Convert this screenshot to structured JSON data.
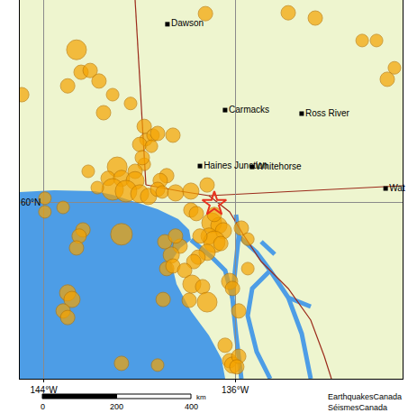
{
  "chart_data": {
    "type": "map",
    "xlim": [
      -145,
      -129
    ],
    "ylim": [
      56,
      64.6
    ],
    "xticks": [
      {
        "value": -144,
        "label": "144°W"
      },
      {
        "value": -136,
        "label": "136°W"
      }
    ],
    "yticks": [
      {
        "value": 60,
        "label": "60°N"
      }
    ],
    "grid": true,
    "places": [
      {
        "name": "Dawson",
        "lon": -138.83,
        "lat": 64.05
      },
      {
        "name": "Carmacks",
        "lon": -136.42,
        "lat": 62.1
      },
      {
        "name": "Ross River",
        "lon": -133.22,
        "lat": 62.02
      },
      {
        "name": "Haines Junction",
        "lon": -137.47,
        "lat": 60.83
      },
      {
        "name": "Whitehorse",
        "lon": -135.29,
        "lat": 60.81
      },
      {
        "name": "Wat",
        "lon": -129.71,
        "lat": 60.32
      }
    ],
    "earthquakes": {
      "color": "#f5a300",
      "marker": "circle",
      "lon": [
        -137.24,
        -133.78,
        -132.65,
        -130.69,
        -130.09,
        -129.64,
        -129.34,
        -144.92,
        -142.63,
        -142.44,
        -143.0,
        -142.06,
        -141.69,
        -141.12,
        -141.5,
        -140.37,
        -139.8,
        -139.73,
        -139.99,
        -139.43,
        -139.24,
        -138.6,
        -139.5,
        -139.8,
        -138.86,
        -139.13,
        -140.93,
        -141.31,
        -140.75,
        -140.18,
        -140.18,
        -141.12,
        -140.56,
        -139.99,
        -139.62,
        -139.24,
        -139.05,
        -138.49,
        -137.85,
        -137.17,
        -139.88,
        -142.14,
        -141.76,
        -137.85,
        -137.62,
        -136.98,
        -136.68,
        -136.49,
        -137.09,
        -136.87,
        -136.6,
        -137.17,
        -137.55,
        -137.73,
        -138.3,
        -138.67,
        -138.86,
        -138.6,
        -138.11,
        -137.81,
        -137.36,
        -137.17,
        -137.92,
        -138.94,
        -138.49,
        -137.47,
        -136.23,
        -136.11,
        -135.74,
        -135.47,
        -135.47,
        -135.85,
        -136.23,
        -136.11,
        -135.85,
        -135.93,
        -136.42,
        -139.01,
        -140.75,
        -142.36,
        -142.52,
        -142.63,
        -143.95,
        -143.95,
        -143.19,
        -143.0,
        -142.82,
        -143.19,
        -143.0,
        -140.75,
        -139.24,
        -136.87
      ],
      "lat": [
        64.29,
        64.31,
        64.19,
        63.68,
        63.68,
        62.8,
        63.06,
        62.45,
        63.47,
        62.96,
        62.65,
        63.0,
        62.76,
        62.45,
        62.04,
        62.25,
        61.73,
        61.43,
        61.32,
        61.53,
        61.57,
        61.53,
        61.28,
        60.87,
        60.61,
        60.5,
        60.81,
        60.55,
        60.55,
        60.71,
        60.5,
        60.3,
        60.26,
        60.2,
        60.14,
        60.3,
        60.24,
        60.22,
        60.26,
        60.4,
        61.02,
        60.71,
        60.34,
        59.83,
        59.75,
        59.54,
        59.48,
        59.36,
        59.24,
        59.11,
        59.07,
        58.87,
        58.76,
        58.66,
        59.01,
        58.81,
        58.5,
        58.56,
        58.46,
        58.15,
        58.09,
        57.74,
        57.78,
        59.11,
        59.24,
        59.24,
        58.21,
        58.05,
        59.42,
        59.17,
        58.5,
        57.54,
        56.41,
        56.31,
        56.51,
        56.27,
        56.76,
        57.8,
        59.28,
        59.38,
        59.24,
        58.97,
        60.1,
        59.79,
        59.89,
        57.95,
        57.8,
        57.54,
        57.39,
        56.35,
        56.31,
        59.73
      ],
      "size": [
        4,
        4,
        4,
        3.5,
        3.5,
        4,
        3.5,
        4,
        5.5,
        4,
        4,
        4,
        4,
        3.5,
        4,
        3.5,
        4,
        3.5,
        4,
        3.5,
        4,
        4,
        3.5,
        3.5,
        4,
        4,
        5.5,
        4,
        4.5,
        4,
        5,
        6,
        6,
        5,
        4.5,
        4,
        3.5,
        4.5,
        4.5,
        4,
        4,
        3.5,
        3.5,
        4,
        4,
        5.5,
        4.5,
        4.5,
        4.5,
        6,
        4,
        4.5,
        4,
        4,
        4,
        4.5,
        4,
        4,
        4,
        5,
        4,
        5.5,
        4,
        4,
        4,
        4,
        4.5,
        4,
        4,
        3.5,
        3.5,
        4,
        4,
        4.5,
        4,
        4,
        4,
        4,
        6,
        4,
        4,
        4,
        3.5,
        3.5,
        3.5,
        4.5,
        4.5,
        4,
        4,
        4,
        3.5,
        4
      ]
    },
    "epicenter": {
      "color": "#e8321e",
      "marker": "star",
      "lon": -136.87,
      "lat": 59.97
    },
    "scale_bar": {
      "ticks": [
        0,
        200,
        400
      ],
      "unit": "km"
    },
    "credits": [
      "EarthquakesCanada",
      "SéismesCanada"
    ]
  }
}
